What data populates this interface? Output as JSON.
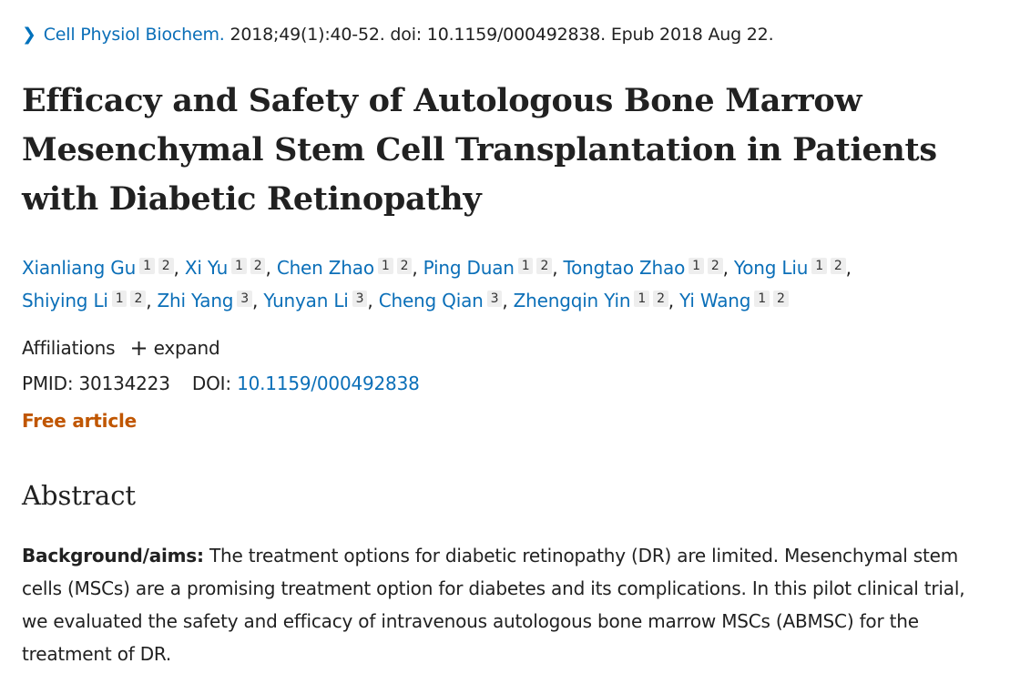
{
  "citation": {
    "journal": "Cell Physiol Biochem.",
    "details": "2018;49(1):40-52. doi: 10.1159/000492838. Epub 2018 Aug 22."
  },
  "title": "Efficacy and Safety of Autologous Bone Marrow Mesenchymal Stem Cell Transplantation in Patients with Diabetic Retinopathy",
  "authors": [
    {
      "name": "Xianliang Gu",
      "aff": [
        "1",
        "2"
      ]
    },
    {
      "name": "Xi Yu",
      "aff": [
        "1",
        "2"
      ]
    },
    {
      "name": "Chen Zhao",
      "aff": [
        "1",
        "2"
      ]
    },
    {
      "name": "Ping Duan",
      "aff": [
        "1",
        "2"
      ]
    },
    {
      "name": "Tongtao Zhao",
      "aff": [
        "1",
        "2"
      ]
    },
    {
      "name": "Yong Liu",
      "aff": [
        "1",
        "2"
      ]
    },
    {
      "name": "Shiying Li",
      "aff": [
        "1",
        "2"
      ]
    },
    {
      "name": "Zhi Yang",
      "aff": [
        "3"
      ]
    },
    {
      "name": "Yunyan Li",
      "aff": [
        "3"
      ]
    },
    {
      "name": "Cheng Qian",
      "aff": [
        "3"
      ]
    },
    {
      "name": "Zhengqin Yin",
      "aff": [
        "1",
        "2"
      ]
    },
    {
      "name": "Yi Wang",
      "aff": [
        "1",
        "2"
      ]
    }
  ],
  "affiliations": {
    "label": "Affiliations",
    "expand": "expand"
  },
  "ids": {
    "pmid_label": "PMID:",
    "pmid": "30134223",
    "doi_label": "DOI:",
    "doi": "10.1159/000492838"
  },
  "free_article": "Free article",
  "abstract": {
    "heading": "Abstract",
    "label": "Background/aims:",
    "text": " The treatment options for diabetic retinopathy (DR) are limited. Mesenchymal stem cells (MSCs) are a promising treatment option for diabetes and its complications. In this pilot clinical trial, we evaluated the safety and efficacy of intravenous autologous bone marrow MSCs (ABMSC) for the treatment of DR."
  },
  "colors": {
    "link": "#0b6fb8",
    "free": "#c05600"
  }
}
